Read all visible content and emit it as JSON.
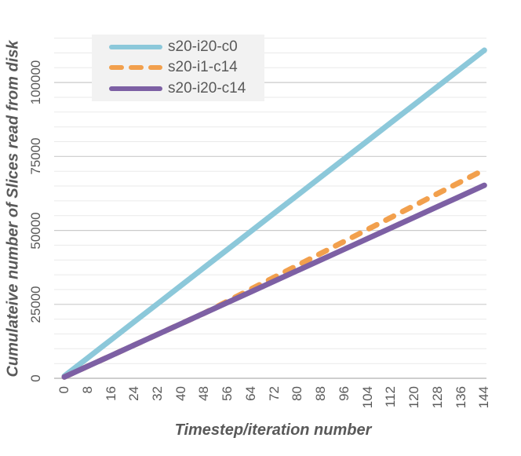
{
  "colors": {
    "text": "#595959",
    "legend_background": "#F2F2F2",
    "gridline_minor": "#EAEAEA",
    "gridline_major": "#CBCBCB",
    "axis_line": "#BDBDBD",
    "series_blue": "#8CC8DA",
    "series_orange": "#F2A04D",
    "series_purple": "#7D60A4"
  },
  "chart_data": {
    "type": "line",
    "title": "",
    "xlabel": "Timestep/iteration number",
    "ylabel": "Cumulateive number of Slices read from disk",
    "x": [
      0,
      8,
      16,
      24,
      32,
      40,
      48,
      56,
      64,
      72,
      80,
      88,
      96,
      104,
      112,
      120,
      128,
      136,
      144
    ],
    "x_tick_labels": [
      "0",
      "8",
      "16",
      "24",
      "32",
      "40",
      "48",
      "56",
      "64",
      "72",
      "80",
      "88",
      "96",
      "104",
      "112",
      "120",
      "128",
      "136",
      "144"
    ],
    "y_ticks": [
      {
        "label": "0",
        "value": 0
      },
      {
        "label": "25000",
        "value": 25000
      },
      {
        "label": "50000",
        "value": 50000
      },
      {
        "label": "75000",
        "value": 75000
      },
      {
        "label": "100000",
        "value": 100000
      }
    ],
    "xlim": [
      0,
      144
    ],
    "ylim": [
      0,
      115000
    ],
    "y_minor_unit": 5000,
    "y_major_unit": 25000,
    "grid": "horizontal, minor light + major darker",
    "legend_position": "top-left inside plot",
    "series": [
      {
        "name": "s20-i20-c0",
        "color": "#8CC8DA",
        "dash": "solid",
        "values": [
          765,
          6885,
          13005,
          19125,
          25245,
          31365,
          37485,
          43605,
          49725,
          55845,
          61965,
          68085,
          74205,
          80325,
          86445,
          92565,
          98685,
          104805,
          110925
        ]
      },
      {
        "name": "s20-i1-c14",
        "color": "#F2A04D",
        "dash": "dashed",
        "values": [
          450,
          4050,
          7650,
          11250,
          14850,
          18450,
          22050,
          26090,
          30130,
          34170,
          38210,
          42250,
          46290,
          50330,
          54370,
          58410,
          62450,
          66490,
          70530
        ]
      },
      {
        "name": "s20-i20-c14",
        "color": "#7D60A4",
        "dash": "solid",
        "values": [
          450,
          4050,
          7650,
          11250,
          14850,
          18450,
          22050,
          25650,
          29250,
          32850,
          36450,
          40050,
          43650,
          47250,
          50850,
          54450,
          58050,
          61650,
          65250
        ]
      }
    ]
  }
}
